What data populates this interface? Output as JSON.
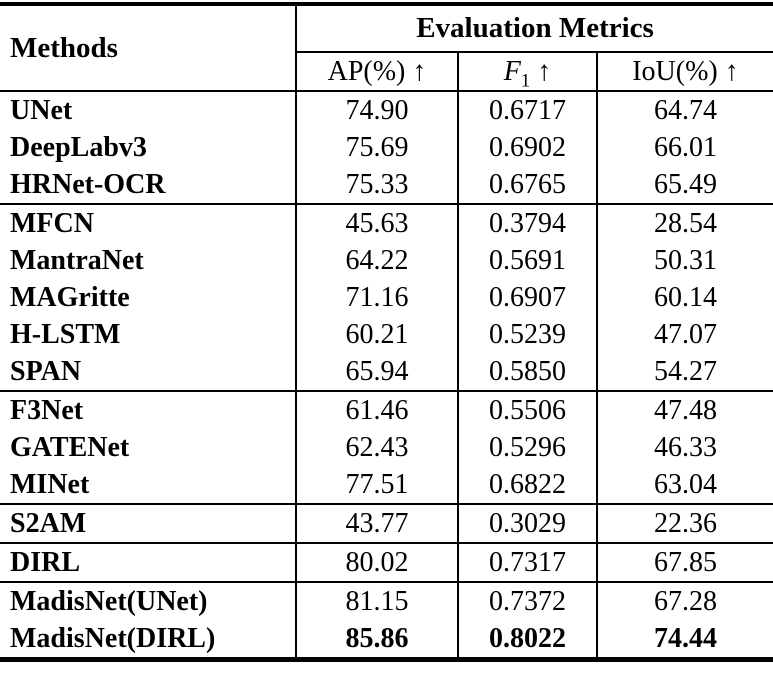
{
  "table": {
    "methods_header": "Methods",
    "metrics_header": "Evaluation Metrics",
    "columns": [
      {
        "label": "AP(%)",
        "sub": "",
        "arrow": "↑"
      },
      {
        "label": "F",
        "sub": "1",
        "arrow": "↑"
      },
      {
        "label": "IoU(%)",
        "sub": "",
        "arrow": "↑"
      }
    ],
    "rows": [
      {
        "method": "UNet",
        "values": [
          "74.90",
          "0.6717",
          "64.74"
        ],
        "group_end": false,
        "bold_values": false
      },
      {
        "method": "DeepLabv3",
        "values": [
          "75.69",
          "0.6902",
          "66.01"
        ],
        "group_end": false,
        "bold_values": false
      },
      {
        "method": "HRNet-OCR",
        "values": [
          "75.33",
          "0.6765",
          "65.49"
        ],
        "group_end": true,
        "bold_values": false
      },
      {
        "method": "MFCN",
        "values": [
          "45.63",
          "0.3794",
          "28.54"
        ],
        "group_end": false,
        "bold_values": false
      },
      {
        "method": "MantraNet",
        "values": [
          "64.22",
          "0.5691",
          "50.31"
        ],
        "group_end": false,
        "bold_values": false
      },
      {
        "method": "MAGritte",
        "values": [
          "71.16",
          "0.6907",
          "60.14"
        ],
        "group_end": false,
        "bold_values": false
      },
      {
        "method": "H-LSTM",
        "values": [
          "60.21",
          "0.5239",
          "47.07"
        ],
        "group_end": false,
        "bold_values": false
      },
      {
        "method": "SPAN",
        "values": [
          "65.94",
          "0.5850",
          "54.27"
        ],
        "group_end": true,
        "bold_values": false
      },
      {
        "method": "F3Net",
        "values": [
          "61.46",
          "0.5506",
          "47.48"
        ],
        "group_end": false,
        "bold_values": false
      },
      {
        "method": "GATENet",
        "values": [
          "62.43",
          "0.5296",
          "46.33"
        ],
        "group_end": false,
        "bold_values": false
      },
      {
        "method": "MINet",
        "values": [
          "77.51",
          "0.6822",
          "63.04"
        ],
        "group_end": true,
        "bold_values": false
      },
      {
        "method": "S2AM",
        "values": [
          "43.77",
          "0.3029",
          "22.36"
        ],
        "group_end": true,
        "bold_values": false
      },
      {
        "method": "DIRL",
        "values": [
          "80.02",
          "0.7317",
          "67.85"
        ],
        "group_end": true,
        "bold_values": false
      },
      {
        "method": "MadisNet(UNet)",
        "values": [
          "81.15",
          "0.7372",
          "67.28"
        ],
        "group_end": false,
        "bold_values": false
      },
      {
        "method": "MadisNet(DIRL)",
        "values": [
          "85.86",
          "0.8022",
          "74.44"
        ],
        "group_end": false,
        "bold_values": true
      }
    ]
  }
}
